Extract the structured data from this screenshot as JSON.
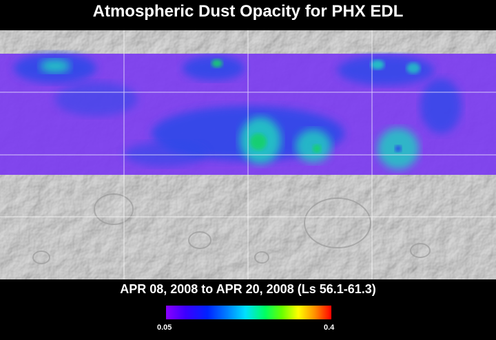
{
  "title": "Atmospheric Dust Opacity for PHX EDL",
  "subtitle": "APR 08, 2008 to APR 20, 2008 (Ls 56.1-61.3)",
  "colorbar": {
    "min_label": "0.05",
    "max_label": "0.4",
    "min_value": 0.05,
    "max_value": 0.4,
    "colors": [
      "#8a00ff",
      "#3b00ff",
      "#0022ff",
      "#0080ff",
      "#00e0ff",
      "#00ff60",
      "#66ff00",
      "#ffff00",
      "#ff9000",
      "#ff0000"
    ]
  },
  "map": {
    "base_color": "#c9c9c9",
    "gridlines": true,
    "overlay_colors": {
      "low": "#7b3bf0",
      "mid": "#2a49e8",
      "high": "#22c9c2",
      "peak": "#18d06e"
    }
  }
}
